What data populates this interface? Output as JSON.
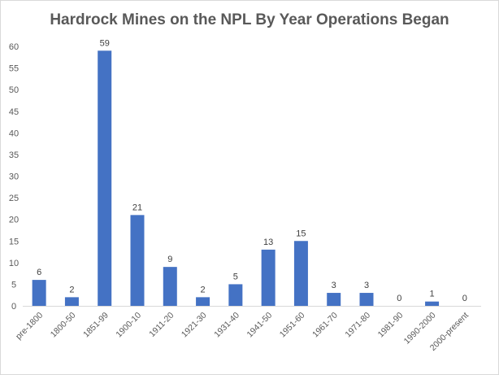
{
  "chart_data": {
    "type": "bar",
    "title": "Hardrock Mines on the NPL By Year Operations Began",
    "xlabel": "",
    "ylabel": "",
    "categories": [
      "pre-1800",
      "1800-50",
      "1851-99",
      "1900-10",
      "1911-20",
      "1921-30",
      "1931-40",
      "1941-50",
      "1951-60",
      "1961-70",
      "1971-80",
      "1981-90",
      "1990-2000",
      "2000-present"
    ],
    "values": [
      6,
      2,
      59,
      21,
      9,
      2,
      5,
      13,
      15,
      3,
      3,
      0,
      1,
      0
    ],
    "ylim": [
      0,
      60
    ],
    "yticks": [
      0,
      5,
      10,
      15,
      20,
      25,
      30,
      35,
      40,
      45,
      50,
      55,
      60
    ],
    "grid": false,
    "legend": "none",
    "bar_color": "#4472C4"
  }
}
